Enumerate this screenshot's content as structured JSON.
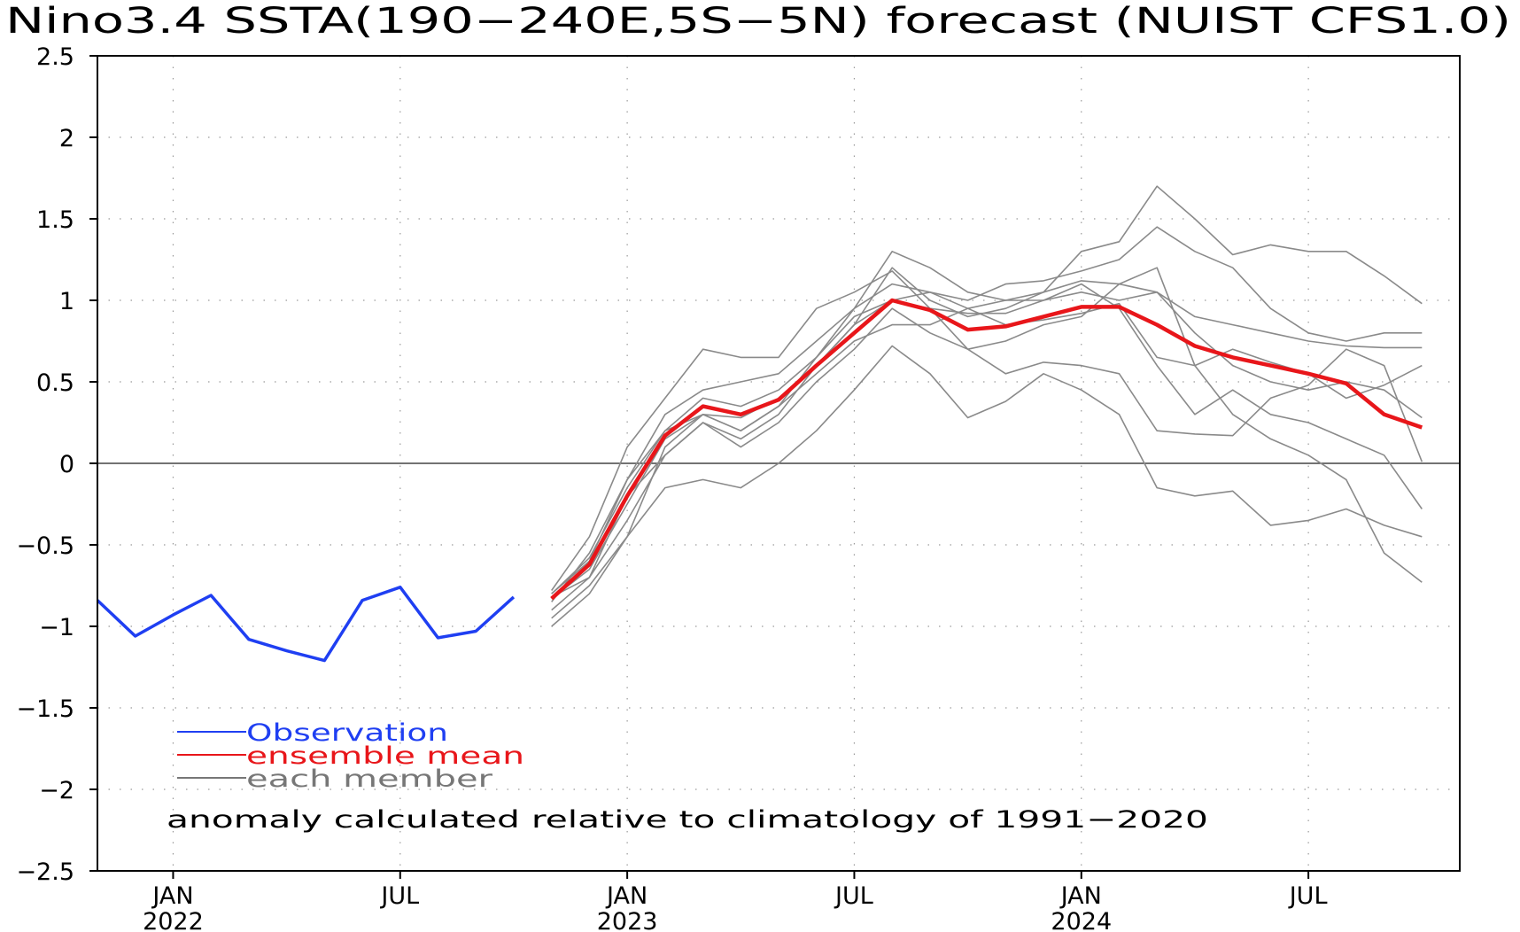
{
  "chart_data": {
    "type": "line",
    "title": "Nino3.4 SSTA(190−240E,5S−5N) forecast (NUIST CFS1.0)",
    "xlabel": "",
    "ylabel": "",
    "ylim": [
      -2.5,
      2.5
    ],
    "xlim": [
      "2021-11",
      "2024-11"
    ],
    "grid": true,
    "yticks": [
      {
        "value": 2.5,
        "label": "2.5"
      },
      {
        "value": 2,
        "label": "2"
      },
      {
        "value": 1.5,
        "label": "1.5"
      },
      {
        "value": 1,
        "label": "1"
      },
      {
        "value": 0.5,
        "label": "0.5"
      },
      {
        "value": 0,
        "label": "0"
      },
      {
        "value": -0.5,
        "label": "−0.5"
      },
      {
        "value": -1,
        "label": "−1"
      },
      {
        "value": -1.5,
        "label": "−1.5"
      },
      {
        "value": -2,
        "label": "−2"
      },
      {
        "value": -2.5,
        "label": "−2.5"
      }
    ],
    "xticks": [
      {
        "date": "2022-01",
        "label": "JAN",
        "sublabel": "2022"
      },
      {
        "date": "2022-07",
        "label": "JUL",
        "sublabel": ""
      },
      {
        "date": "2023-01",
        "label": "JAN",
        "sublabel": "2023"
      },
      {
        "date": "2023-07",
        "label": "JUL",
        "sublabel": ""
      },
      {
        "date": "2024-01",
        "label": "JAN",
        "sublabel": "2024"
      },
      {
        "date": "2024-07",
        "label": "JUL",
        "sublabel": ""
      }
    ],
    "legend": {
      "placement": "bottom-left",
      "entries": [
        {
          "label": "Observation",
          "color": "#1f3ff2"
        },
        {
          "label": "ensemble mean",
          "color": "#e8161a"
        },
        {
          "label": "each member",
          "color": "#777777"
        }
      ]
    },
    "annotation": "anomaly calculated relative to climatology of 1991−2020",
    "observation": {
      "color": "#1f3ff2",
      "x": [
        "2021-11",
        "2021-12",
        "2022-01",
        "2022-02",
        "2022-03",
        "2022-04",
        "2022-05",
        "2022-06",
        "2022-07",
        "2022-08",
        "2022-09",
        "2022-10"
      ],
      "values": [
        -0.84,
        -1.06,
        -0.93,
        -0.81,
        -1.08,
        -1.15,
        -1.21,
        -0.84,
        -0.76,
        -1.07,
        -1.03,
        -0.82
      ]
    },
    "ensemble_mean": {
      "color": "#e8161a",
      "x": [
        "2022-11",
        "2022-12",
        "2023-01",
        "2023-02",
        "2023-03",
        "2023-04",
        "2023-05",
        "2023-06",
        "2023-07",
        "2023-08",
        "2023-09",
        "2023-10",
        "2023-11",
        "2023-12",
        "2024-01",
        "2024-02",
        "2024-03",
        "2024-04",
        "2024-05",
        "2024-06",
        "2024-07",
        "2024-08",
        "2024-09",
        "2024-10"
      ],
      "values": [
        -0.83,
        -0.62,
        -0.2,
        0.17,
        0.35,
        0.3,
        0.39,
        0.6,
        0.8,
        1.0,
        0.94,
        0.82,
        0.84,
        0.9,
        0.96,
        0.96,
        0.85,
        0.72,
        0.65,
        0.6,
        0.55,
        0.49,
        0.3,
        0.22
      ]
    },
    "members": {
      "color": "#8a8a8a",
      "x": [
        "2022-11",
        "2022-12",
        "2023-01",
        "2023-02",
        "2023-03",
        "2023-04",
        "2023-05",
        "2023-06",
        "2023-07",
        "2023-08",
        "2023-09",
        "2023-10",
        "2023-11",
        "2023-12",
        "2024-01",
        "2024-02",
        "2024-03",
        "2024-04",
        "2024-05",
        "2024-06",
        "2024-07",
        "2024-08",
        "2024-09",
        "2024-10"
      ],
      "series": [
        [
          -0.78,
          -0.45,
          0.1,
          0.4,
          0.7,
          0.65,
          0.65,
          0.95,
          1.05,
          1.18,
          0.95,
          0.7,
          0.75,
          0.85,
          0.9,
          1.1,
          1.2,
          0.6,
          0.3,
          0.15,
          0.05,
          -0.1,
          -0.55,
          -0.73
        ],
        [
          -0.8,
          -0.6,
          -0.1,
          0.2,
          0.3,
          0.2,
          0.35,
          0.55,
          0.75,
          0.85,
          0.85,
          0.95,
          1.0,
          1.05,
          1.12,
          1.1,
          1.05,
          0.8,
          0.6,
          0.5,
          0.45,
          0.5,
          0.45,
          0.28
        ],
        [
          -0.82,
          -0.7,
          -0.2,
          0.05,
          0.25,
          0.15,
          0.3,
          0.6,
          0.85,
          1.2,
          1.0,
          0.9,
          0.95,
          1.05,
          1.3,
          1.36,
          1.7,
          1.5,
          1.28,
          1.34,
          1.3,
          1.3,
          1.15,
          0.98
        ],
        [
          -0.85,
          -0.55,
          -0.1,
          0.3,
          0.45,
          0.5,
          0.55,
          0.75,
          0.95,
          1.1,
          1.05,
          1.0,
          1.1,
          1.12,
          1.18,
          1.25,
          1.45,
          1.3,
          1.2,
          0.95,
          0.8,
          0.75,
          0.8,
          0.8
        ],
        [
          -0.8,
          -0.58,
          -0.15,
          0.2,
          0.4,
          0.35,
          0.45,
          0.65,
          0.9,
          1.0,
          0.95,
          0.92,
          0.92,
          1.0,
          1.05,
          1.0,
          1.05,
          0.9,
          0.85,
          0.8,
          0.75,
          0.72,
          0.71,
          0.71
        ],
        [
          -0.83,
          -0.65,
          -0.25,
          0.15,
          0.3,
          0.28,
          0.4,
          0.6,
          0.85,
          1.0,
          1.05,
          0.95,
          0.85,
          0.88,
          0.92,
          0.98,
          0.65,
          0.6,
          0.7,
          0.62,
          0.55,
          0.4,
          0.48,
          0.6
        ],
        [
          -0.9,
          -0.7,
          -0.35,
          0.05,
          0.25,
          0.1,
          0.25,
          0.5,
          0.7,
          0.95,
          0.8,
          0.7,
          0.55,
          0.62,
          0.6,
          0.55,
          0.2,
          0.18,
          0.17,
          0.4,
          0.48,
          0.7,
          0.6,
          0.01
        ],
        [
          -0.95,
          -0.75,
          -0.45,
          -0.15,
          -0.1,
          -0.15,
          0.0,
          0.2,
          0.45,
          0.72,
          0.55,
          0.28,
          0.38,
          0.55,
          0.45,
          0.3,
          -0.15,
          -0.2,
          -0.17,
          -0.38,
          -0.35,
          -0.28,
          -0.38,
          -0.45
        ],
        [
          -1.0,
          -0.8,
          -0.45,
          0.1,
          0.3,
          0.2,
          0.35,
          0.65,
          0.95,
          1.3,
          1.2,
          1.05,
          1.0,
          1.0,
          1.1,
          0.95,
          0.6,
          0.3,
          0.45,
          0.3,
          0.25,
          0.15,
          0.05,
          -0.28
        ]
      ]
    }
  }
}
